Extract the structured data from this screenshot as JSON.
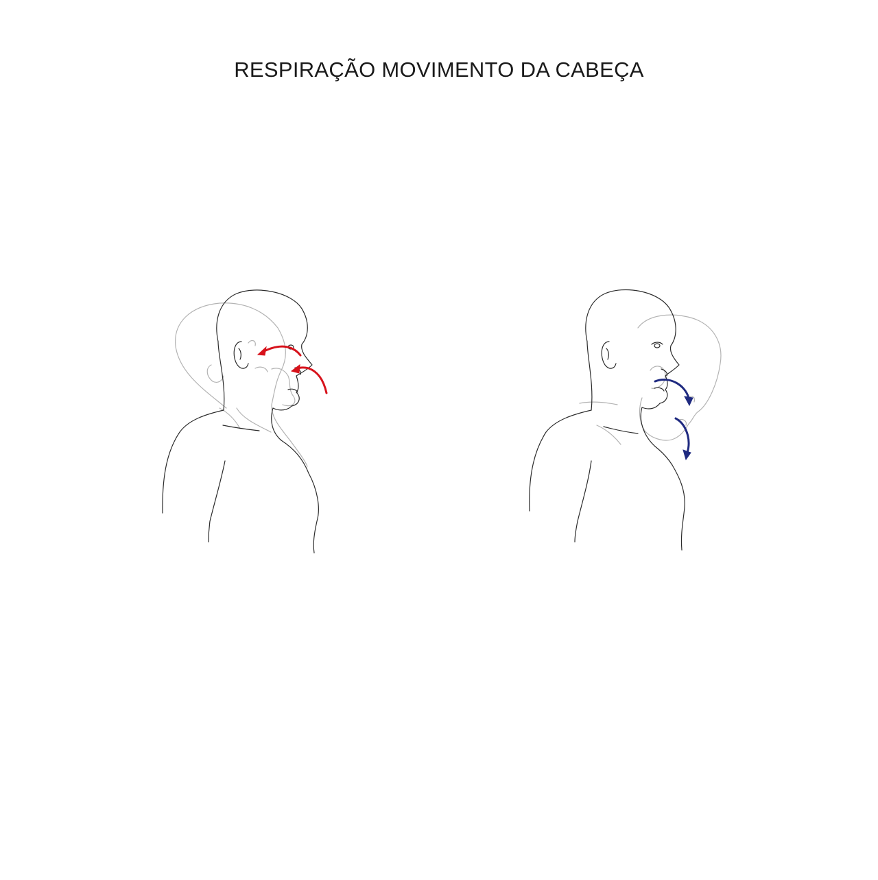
{
  "title": "RESPIRAÇÃO MOVIMENTO DA CABEÇA",
  "colors": {
    "inhale_arrow": "#d7121b",
    "exhale_arrow": "#1f2a80",
    "outline_solid": "#2b2b2b",
    "outline_ghost": "#b3b3b3",
    "background": "#ffffff"
  }
}
